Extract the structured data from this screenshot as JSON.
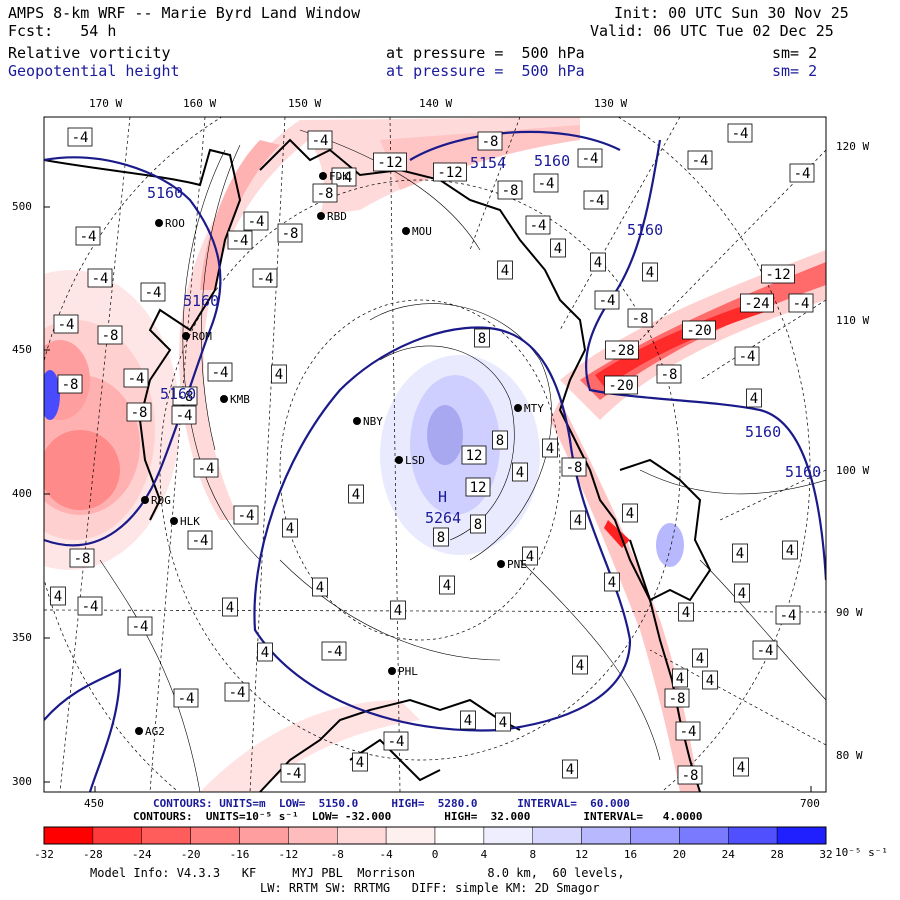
{
  "header": {
    "title": "AMPS 8-km WRF -- Marie Byrd Land Window",
    "forecast": "Fcst:   54 h",
    "init": "Init: 00 UTC Sun 30 Nov 25",
    "valid": "Valid: 06 UTC Tue 02 Dec 25",
    "field1": {
      "name": "Relative vorticity",
      "level": "at pressure =  500 hPa",
      "smooth": "sm= 2"
    },
    "field2": {
      "name": "Geopotential height",
      "level": "at pressure =  500 hPa",
      "smooth": "sm= 2"
    }
  },
  "axes": {
    "lon_top": [
      "170 W",
      "160 W",
      "150 W",
      "140 W",
      "130 W"
    ],
    "lat_right": [
      "120 W",
      "110 W",
      "100 W",
      "90 W",
      "80 W"
    ],
    "y_left": [
      "500",
      "450",
      "400",
      "350",
      "300"
    ],
    "x_bottom": [
      "450",
      "700"
    ]
  },
  "stations": [
    {
      "name": "ROO"
    },
    {
      "name": "FDK"
    },
    {
      "name": "RBD"
    },
    {
      "name": "MOU"
    },
    {
      "name": "ROM"
    },
    {
      "name": "KMB"
    },
    {
      "name": "NBY"
    },
    {
      "name": "MTY"
    },
    {
      "name": "LSD"
    },
    {
      "name": "RDG"
    },
    {
      "name": "HLK"
    },
    {
      "name": "PNE"
    },
    {
      "name": "PHL"
    },
    {
      "name": "AG2"
    }
  ],
  "height_labels": {
    "h5160": "5160",
    "h5154": "5154",
    "high_symbol": "H",
    "high_value": "5264"
  },
  "contour_labels": {
    "m4": "-4",
    "m8": "-8",
    "m12": "-12",
    "m20": "-20",
    "m24": "-24",
    "m28": "-28",
    "p4": "4",
    "p8": "8",
    "p12": "12"
  },
  "footer": {
    "height_contours": "CONTOURS: UNITS=m  LOW=  5150.0     HIGH=  5280.0      INTERVAL=  60.000",
    "vort_contours": "CONTOURS:  UNITS=10⁻⁵ s⁻¹  LOW= -32.000        HIGH=  32.000        INTERVAL=   4.0000",
    "model_info": "Model Info: V4.3.3   KF     MYJ PBL  Morrison          8.0 km,  60 levels,",
    "physics": "LW: RRTM SW: RRTMG   DIFF: simple KM: 2D Smagor"
  },
  "colorbar": {
    "ticks": [
      "-32",
      "-28",
      "-24",
      "-20",
      "-16",
      "-12",
      "-8",
      "-4",
      "0",
      "4",
      "8",
      "12",
      "16",
      "20",
      "24",
      "28",
      "32"
    ],
    "unit": "10⁻⁵ s⁻¹",
    "colors": [
      "#ff0000",
      "#ff3a3a",
      "#ff5c5c",
      "#ff7d7d",
      "#ff9e9e",
      "#ffbcbc",
      "#ffd8d8",
      "#fff0f0",
      "#ffffff",
      "#eeeeff",
      "#d6d6ff",
      "#b8b8ff",
      "#9a9aff",
      "#7a7aff",
      "#5050ff",
      "#2020ff"
    ]
  }
}
